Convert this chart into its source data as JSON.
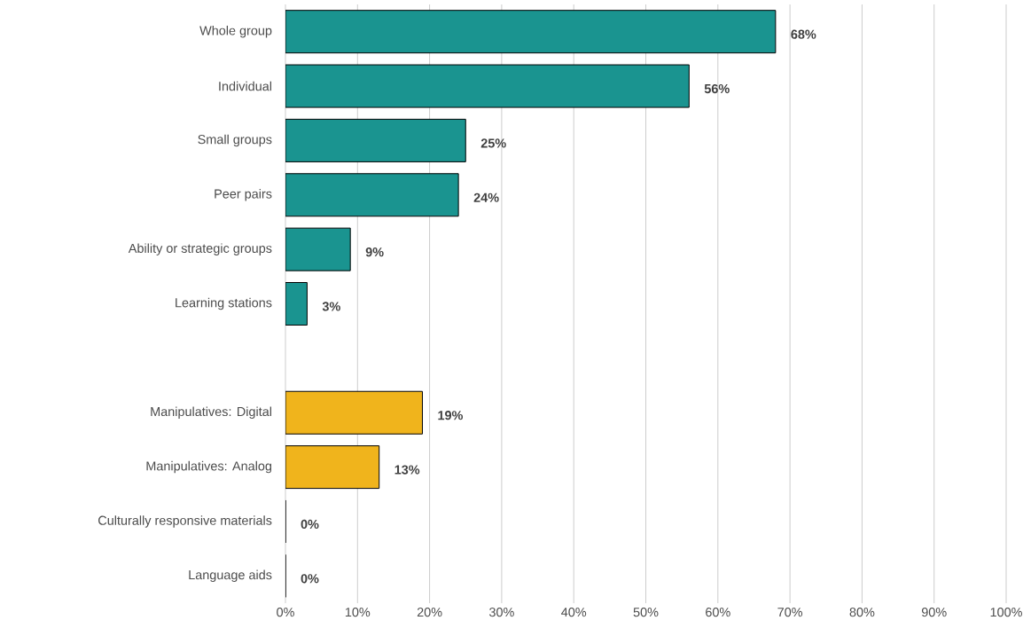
{
  "chart_data": {
    "type": "bar",
    "orientation": "horizontal",
    "categories": [
      "Whole group",
      "Individual",
      "Small groups",
      "Peer pairs",
      "Ability or strategic groups",
      "Learning stations",
      null,
      "Manipulatives: Digital",
      "Manipulatives: Analog",
      "Culturally responsive materials",
      "Language aids"
    ],
    "values": [
      68,
      56,
      25,
      24,
      9,
      3,
      null,
      19,
      13,
      0,
      0
    ],
    "colors": [
      "#1a9490",
      "#1a9490",
      "#1a9490",
      "#1a9490",
      "#1a9490",
      "#1a9490",
      null,
      "#f0b41c",
      "#f0b41c",
      "#f0b41c",
      "#f0b41c"
    ],
    "value_labels": [
      "68%",
      "56%",
      "25%",
      "24%",
      "9%",
      "3%",
      null,
      "19%",
      "13%",
      "0%",
      "0%"
    ],
    "xlim": [
      0,
      100
    ],
    "xticks": [
      {
        "value": 0,
        "label": "0%"
      },
      {
        "value": 10,
        "label": "10%"
      },
      {
        "value": 20,
        "label": "20%"
      },
      {
        "value": 30,
        "label": "30%"
      },
      {
        "value": 40,
        "label": "40%"
      },
      {
        "value": 50,
        "label": "50%"
      },
      {
        "value": 60,
        "label": "60%"
      },
      {
        "value": 70,
        "label": "70%"
      },
      {
        "value": 80,
        "label": "80%"
      },
      {
        "value": 90,
        "label": "90%"
      },
      {
        "value": 100,
        "label": "100%"
      }
    ],
    "grid": "x"
  }
}
